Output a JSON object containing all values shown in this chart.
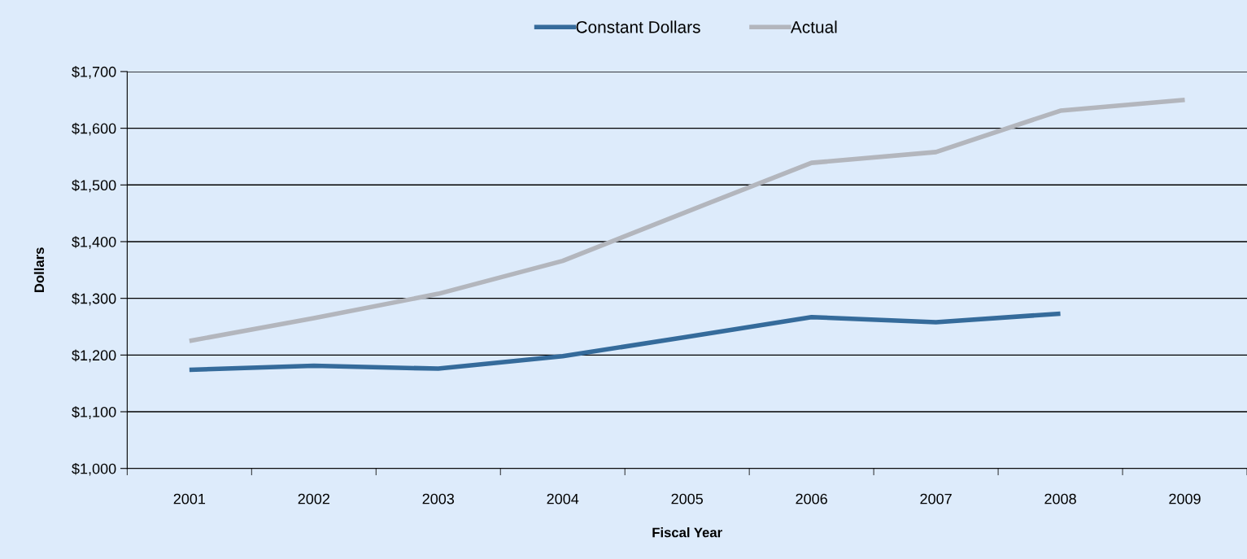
{
  "chart_data": {
    "type": "line",
    "xlabel": "Fiscal Year",
    "ylabel": "Dollars",
    "categories": [
      "2001",
      "2002",
      "2003",
      "2004",
      "2005",
      "2006",
      "2007",
      "2008",
      "2009"
    ],
    "series": [
      {
        "name": "Constant Dollars",
        "color": "#356b9b",
        "values": [
          1174,
          1181,
          1176,
          1198,
          1232,
          1267,
          1258,
          1273,
          null
        ]
      },
      {
        "name": "Actual",
        "color": "#b3b6bd",
        "values": [
          1225,
          1265,
          1308,
          1366,
          1453,
          1539,
          1558,
          1631,
          1650
        ]
      }
    ],
    "ylim": [
      1000,
      1700
    ],
    "yticks": [
      {
        "value": 1000,
        "label": "$1,000"
      },
      {
        "value": 1100,
        "label": "$1,100"
      },
      {
        "value": 1200,
        "label": "$1,200"
      },
      {
        "value": 1300,
        "label": "$1,300"
      },
      {
        "value": 1400,
        "label": "$1,400"
      },
      {
        "value": 1500,
        "label": "$1,500"
      },
      {
        "value": 1600,
        "label": "$1,600"
      },
      {
        "value": 1700,
        "label": "$1,700"
      }
    ],
    "grid": "y",
    "legend": "top",
    "marker": "none",
    "line_style": "solid"
  }
}
